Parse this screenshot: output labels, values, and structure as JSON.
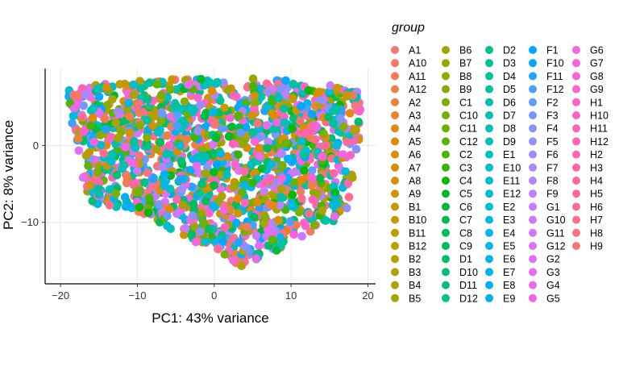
{
  "chart_data": {
    "type": "scatter",
    "title": "",
    "xlabel": "PC1: 43% variance",
    "ylabel": "PC2: 8% variance",
    "xlim": [
      -22,
      21
    ],
    "ylim": [
      -18,
      10
    ],
    "xticks": [
      -20,
      -10,
      0,
      10,
      20
    ],
    "yticks": [
      0,
      -10
    ],
    "grid": true,
    "legend": {
      "title": "group",
      "placement": "right",
      "groups": [
        "A1",
        "A10",
        "A11",
        "A12",
        "A2",
        "A3",
        "A4",
        "A5",
        "A6",
        "A7",
        "A8",
        "A9",
        "B1",
        "B10",
        "B11",
        "B12",
        "B2",
        "B3",
        "B4",
        "B5",
        "B6",
        "B7",
        "B8",
        "B9",
        "C1",
        "C10",
        "C11",
        "C12",
        "C2",
        "C3",
        "C4",
        "C5",
        "C6",
        "C7",
        "C8",
        "C9",
        "D1",
        "D10",
        "D11",
        "D12",
        "D2",
        "D3",
        "D4",
        "D5",
        "D6",
        "D7",
        "D8",
        "D9",
        "E1",
        "E10",
        "E11",
        "E12",
        "E2",
        "E3",
        "E4",
        "E5",
        "E6",
        "E7",
        "E8",
        "E9",
        "F1",
        "F10",
        "F11",
        "F12",
        "F2",
        "F3",
        "F4",
        "F5",
        "F6",
        "F7",
        "F8",
        "F9",
        "G1",
        "G10",
        "G11",
        "G12",
        "G2",
        "G3",
        "G4",
        "G5",
        "G6",
        "G7",
        "G8",
        "G9",
        "H1",
        "H10",
        "H11",
        "H12",
        "H2",
        "H3",
        "H4",
        "H5",
        "H6",
        "H7",
        "H8",
        "H9"
      ]
    }
  }
}
